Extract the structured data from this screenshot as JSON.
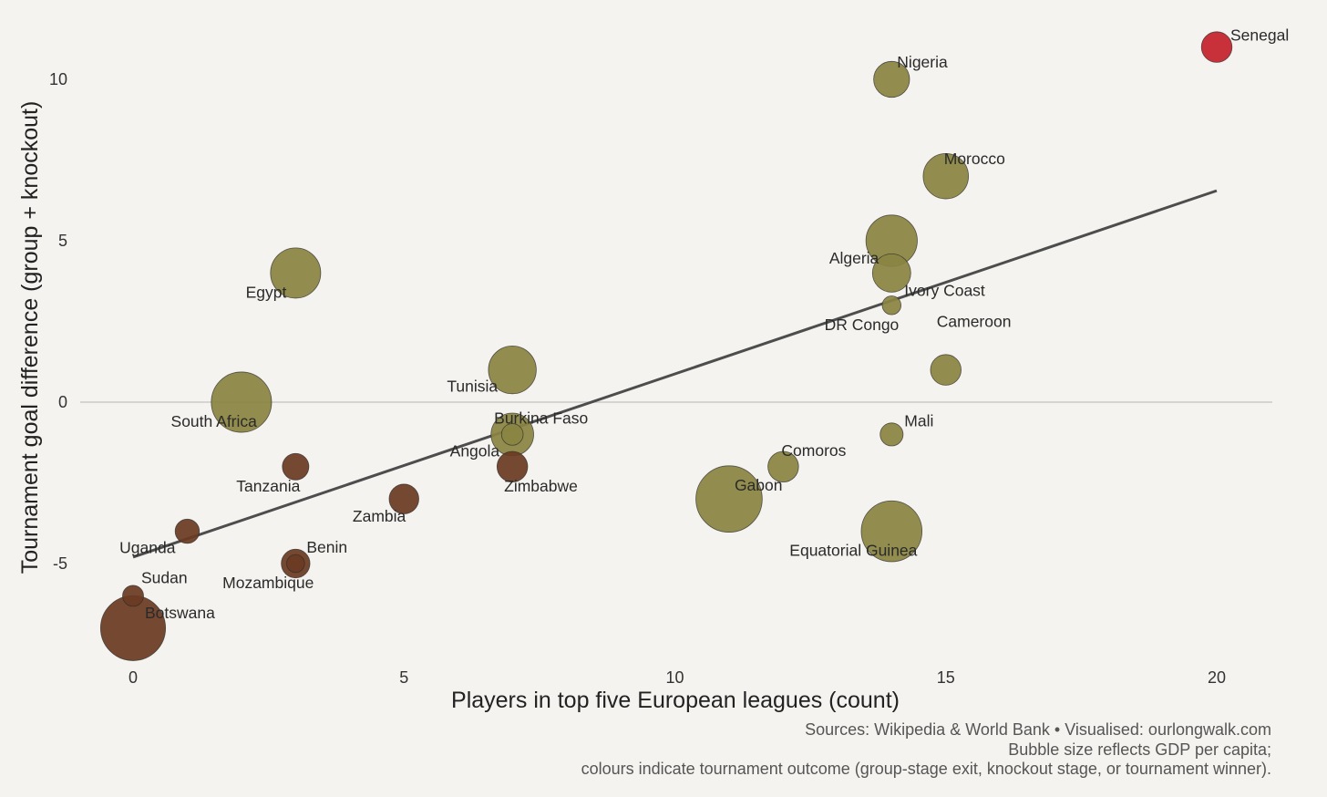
{
  "chart_data": {
    "type": "scatter",
    "title": "",
    "xlabel": "Players in top five European leagues (count)",
    "ylabel": "Tournament goal difference (group + knockout)",
    "xlim": [
      -1,
      21
    ],
    "ylim": [
      -8.5,
      12
    ],
    "xticks": [
      0,
      5,
      10,
      15,
      20
    ],
    "yticks": [
      -5,
      0,
      5,
      10
    ],
    "zero_line": true,
    "grid": false,
    "trend_line": {
      "x": [
        0,
        20
      ],
      "y": [
        -4.8,
        6.55
      ]
    },
    "colors": {
      "group_stage_exit": "#6b3a22",
      "knockout_stage": "#8a8442",
      "tournament_winner": "#c4202c"
    },
    "points": [
      {
        "name": "Senegal",
        "x": 20,
        "y": 11,
        "gdp": 1600,
        "outcome": "tournament_winner"
      },
      {
        "name": "Nigeria",
        "x": 14,
        "y": 10,
        "gdp": 2200,
        "outcome": "knockout_stage"
      },
      {
        "name": "Morocco",
        "x": 15,
        "y": 7,
        "gdp": 3500,
        "outcome": "knockout_stage"
      },
      {
        "name": "Algeria",
        "x": 14,
        "y": 5,
        "gdp": 4500,
        "outcome": "knockout_stage"
      },
      {
        "name": "Ivory Coast",
        "x": 14,
        "y": 4,
        "gdp": 2500,
        "outcome": "knockout_stage"
      },
      {
        "name": "DR Congo",
        "x": 14,
        "y": 3,
        "gdp": 600,
        "outcome": "knockout_stage"
      },
      {
        "name": "Cameroon",
        "x": 15,
        "y": 1,
        "gdp": 1600,
        "outcome": "knockout_stage"
      },
      {
        "name": "Egypt",
        "x": 3,
        "y": 4,
        "gdp": 4300,
        "outcome": "knockout_stage"
      },
      {
        "name": "Tunisia",
        "x": 7,
        "y": 1,
        "gdp": 3900,
        "outcome": "knockout_stage"
      },
      {
        "name": "South Africa",
        "x": 2,
        "y": 0,
        "gdp": 6200,
        "outcome": "knockout_stage"
      },
      {
        "name": "Burkina Faso",
        "x": 7,
        "y": -1,
        "gdp": 800,
        "outcome": "knockout_stage"
      },
      {
        "name": "Angola",
        "x": 7,
        "y": -1,
        "gdp": 3100,
        "outcome": "knockout_stage"
      },
      {
        "name": "Zimbabwe",
        "x": 7,
        "y": -2,
        "gdp": 1600,
        "outcome": "group_stage_exit"
      },
      {
        "name": "Mali",
        "x": 14,
        "y": -1,
        "gdp": 900,
        "outcome": "knockout_stage"
      },
      {
        "name": "Comoros",
        "x": 12,
        "y": -2,
        "gdp": 1600,
        "outcome": "knockout_stage"
      },
      {
        "name": "Gabon",
        "x": 11,
        "y": -3,
        "gdp": 7500,
        "outcome": "knockout_stage"
      },
      {
        "name": "Equatorial Guinea",
        "x": 14,
        "y": -4,
        "gdp": 6300,
        "outcome": "knockout_stage"
      },
      {
        "name": "Tanzania",
        "x": 3,
        "y": -2,
        "gdp": 1200,
        "outcome": "group_stage_exit"
      },
      {
        "name": "Zambia",
        "x": 5,
        "y": -3,
        "gdp": 1500,
        "outcome": "group_stage_exit"
      },
      {
        "name": "Uganda",
        "x": 1,
        "y": -4,
        "gdp": 1000,
        "outcome": "group_stage_exit"
      },
      {
        "name": "Benin",
        "x": 3,
        "y": -5,
        "gdp": 1400,
        "outcome": "group_stage_exit"
      },
      {
        "name": "Mozambique",
        "x": 3,
        "y": -5,
        "gdp": 550,
        "outcome": "group_stage_exit"
      },
      {
        "name": "Sudan",
        "x": 0,
        "y": -6,
        "gdp": 750,
        "outcome": "group_stage_exit"
      },
      {
        "name": "Botswana",
        "x": 0,
        "y": -7,
        "gdp": 7200,
        "outcome": "group_stage_exit"
      }
    ]
  },
  "caption": {
    "line1": "Sources: Wikipedia & World Bank • Visualised: ourlongwalk.com",
    "line2": "Bubble size reflects GDP per capita;",
    "line3": "colours indicate tournament outcome (group-stage exit, knockout stage, or tournament winner)."
  }
}
